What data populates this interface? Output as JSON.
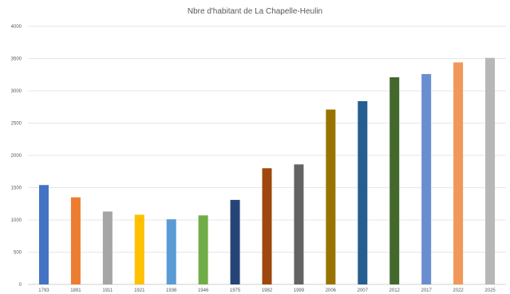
{
  "chart_data": {
    "type": "bar",
    "title": "Nbre d'habitant de La Chapelle-Heulin",
    "xlabel": "",
    "ylabel": "",
    "categories": [
      "1793",
      "1891",
      "1911",
      "1921",
      "1936",
      "1946",
      "1975",
      "1982",
      "1999",
      "2006",
      "2007",
      "2012",
      "2017",
      "2022",
      "2025"
    ],
    "values": [
      1540,
      1350,
      1130,
      1080,
      1010,
      1070,
      1310,
      1800,
      1860,
      2710,
      2840,
      3210,
      3260,
      3440,
      3510
    ],
    "colors": [
      "#4472C4",
      "#ED7D31",
      "#A5A5A5",
      "#FFC000",
      "#5B9BD5",
      "#70AD47",
      "#264478",
      "#9E480E",
      "#636363",
      "#997300",
      "#255E91",
      "#43682B",
      "#698ED0",
      "#F1975A",
      "#B7B7B7"
    ],
    "ylim": [
      0,
      4000
    ],
    "yticks": [
      0,
      500,
      1000,
      1500,
      2000,
      2500,
      3000,
      3500,
      4000
    ],
    "grid": true,
    "legend": "none"
  }
}
